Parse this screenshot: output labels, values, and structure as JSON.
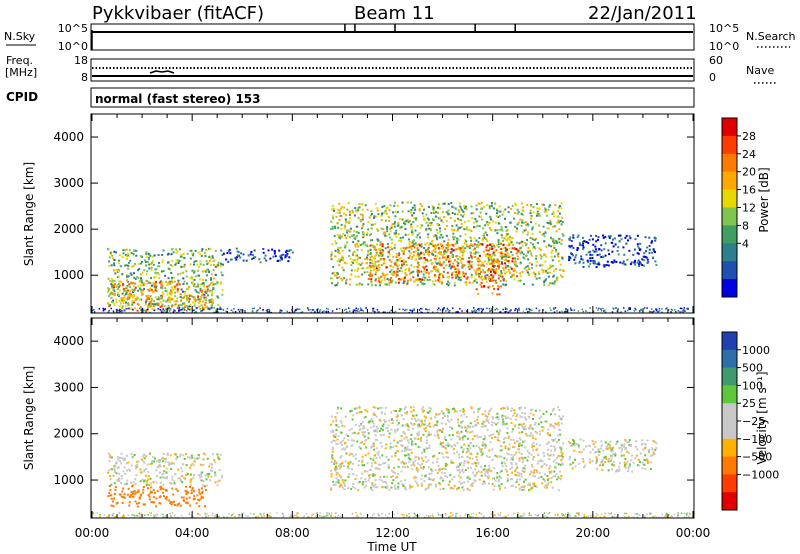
{
  "header": {
    "title": "Pykkvibaer (fitACF)",
    "beam": "Beam 11",
    "date": "22/Jan/2011"
  },
  "panels": {
    "nsky": {
      "label": "N.Sky",
      "left_ticks": [
        "10^5",
        "10^0"
      ],
      "right_ticks": [
        "10^5",
        "10^0"
      ],
      "right_label": "N.Search"
    },
    "freq": {
      "label_line1": "Freq.",
      "label_line2": "[MHz]",
      "left_ticks": [
        "18",
        "8"
      ],
      "right_ticks": [
        "60",
        "0"
      ],
      "right_label": "Nave"
    },
    "cpid": {
      "label": "CPID",
      "text": "normal (fast stereo) 153"
    }
  },
  "axes": {
    "ylabel": "Slant Range [km]",
    "xlabel": "Time UT"
  },
  "chart_data": [
    {
      "type": "heatmap",
      "name": "power",
      "x_ticks": [
        "00:00",
        "04:00",
        "08:00",
        "12:00",
        "16:00",
        "20:00",
        "00:00"
      ],
      "xlim_hours": [
        0,
        24
      ],
      "ylim_km": [
        180,
        4500
      ],
      "y_ticks": [
        1000,
        2000,
        3000,
        4000
      ],
      "colorbar": {
        "label": "Power [dB]",
        "ticks": [
          "28",
          "24",
          "20",
          "16",
          "12",
          "8",
          "4"
        ],
        "colors": [
          "#e00000",
          "#ff3c00",
          "#ff7a00",
          "#ffa800",
          "#e8d800",
          "#7fc650",
          "#3f9f63",
          "#2e7f8c",
          "#1f4fb0",
          "#0000e0"
        ]
      },
      "echo_regions": [
        {
          "t_start": 0.6,
          "t_end": 5.2,
          "r_min": 250,
          "r_max": 1600,
          "level_db": 14
        },
        {
          "t_start": 0.6,
          "t_end": 4.8,
          "r_min": 250,
          "r_max": 900,
          "level_db": 22
        },
        {
          "t_start": 5.2,
          "t_end": 8.0,
          "r_min": 1300,
          "r_max": 1600,
          "level_db": 6
        },
        {
          "t_start": 9.5,
          "t_end": 18.8,
          "r_min": 800,
          "r_max": 2600,
          "level_db": 16
        },
        {
          "t_start": 11.0,
          "t_end": 17.0,
          "r_min": 850,
          "r_max": 1700,
          "level_db": 24
        },
        {
          "t_start": 15.3,
          "t_end": 16.3,
          "r_min": 600,
          "r_max": 800,
          "level_db": 28
        },
        {
          "t_start": 19.0,
          "t_end": 22.5,
          "r_min": 1200,
          "r_max": 1900,
          "level_db": 6
        }
      ]
    },
    {
      "type": "heatmap",
      "name": "velocity",
      "x_ticks": [
        "00:00",
        "04:00",
        "08:00",
        "12:00",
        "16:00",
        "20:00",
        "00:00"
      ],
      "xlim_hours": [
        0,
        24
      ],
      "ylim_km": [
        180,
        4500
      ],
      "y_ticks": [
        1000,
        2000,
        3000,
        4000
      ],
      "colorbar": {
        "label": "Velocity [m s⁻¹]",
        "ticks": [
          "1000",
          "500",
          "100",
          "25",
          "−25",
          "−100",
          "−500",
          "−1000"
        ],
        "colors": [
          "#2040b0",
          "#2d6fa8",
          "#3f9b6e",
          "#5ec83a",
          "#c8c8c8",
          "#c8c8c8",
          "#ffb000",
          "#ff7a00",
          "#ff3c00",
          "#e00000"
        ]
      },
      "echo_regions": [
        {
          "t_start": 0.6,
          "t_end": 5.2,
          "r_min": 900,
          "r_max": 1600,
          "velocity": 0
        },
        {
          "t_start": 0.6,
          "t_end": 4.6,
          "r_min": 450,
          "r_max": 900,
          "velocity": -200
        },
        {
          "t_start": 9.5,
          "t_end": 18.8,
          "r_min": 800,
          "r_max": 2600,
          "velocity": 0
        },
        {
          "t_start": 19.0,
          "t_end": 22.5,
          "r_min": 1200,
          "r_max": 1900,
          "velocity": 0
        }
      ]
    }
  ]
}
